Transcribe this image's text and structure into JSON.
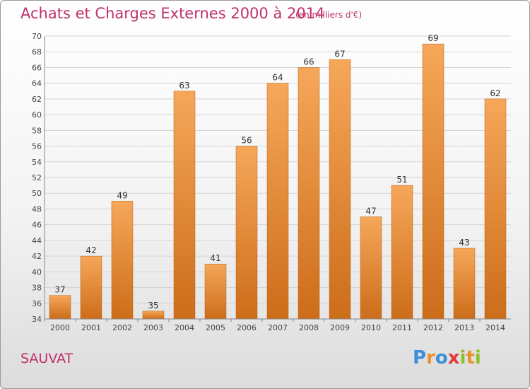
{
  "title": "Achats et Charges Externes 2000 à 2014",
  "unit_note": "(en milliers d'€)",
  "commune": "SAUVAT",
  "logo": {
    "letters": [
      "P",
      "r",
      "o",
      "x",
      "i",
      "t",
      "i"
    ],
    "colors": [
      "#3a8fd8",
      "#e8902a",
      "#3a8fd8",
      "#e33a3a",
      "#8fbf2a",
      "#e8902a",
      "#8fbf2a"
    ]
  },
  "colors": {
    "bar_top": "#f6a75a",
    "bar_bottom": "#cc6d1a",
    "title": "#c0306a"
  },
  "chart_data": {
    "type": "bar",
    "categories": [
      "2000",
      "2001",
      "2002",
      "2003",
      "2004",
      "2005",
      "2006",
      "2007",
      "2008",
      "2009",
      "2010",
      "2011",
      "2012",
      "2013",
      "2014"
    ],
    "values": [
      37,
      42,
      49,
      35,
      63,
      41,
      56,
      64,
      66,
      67,
      47,
      51,
      69,
      43,
      62
    ],
    "title": "Achats et Charges Externes 2000 à 2014",
    "ylim": [
      34,
      70
    ],
    "yticks": [
      34,
      36,
      38,
      40,
      42,
      44,
      46,
      48,
      50,
      52,
      54,
      56,
      58,
      60,
      62,
      64,
      66,
      68,
      70
    ],
    "grid": true
  }
}
